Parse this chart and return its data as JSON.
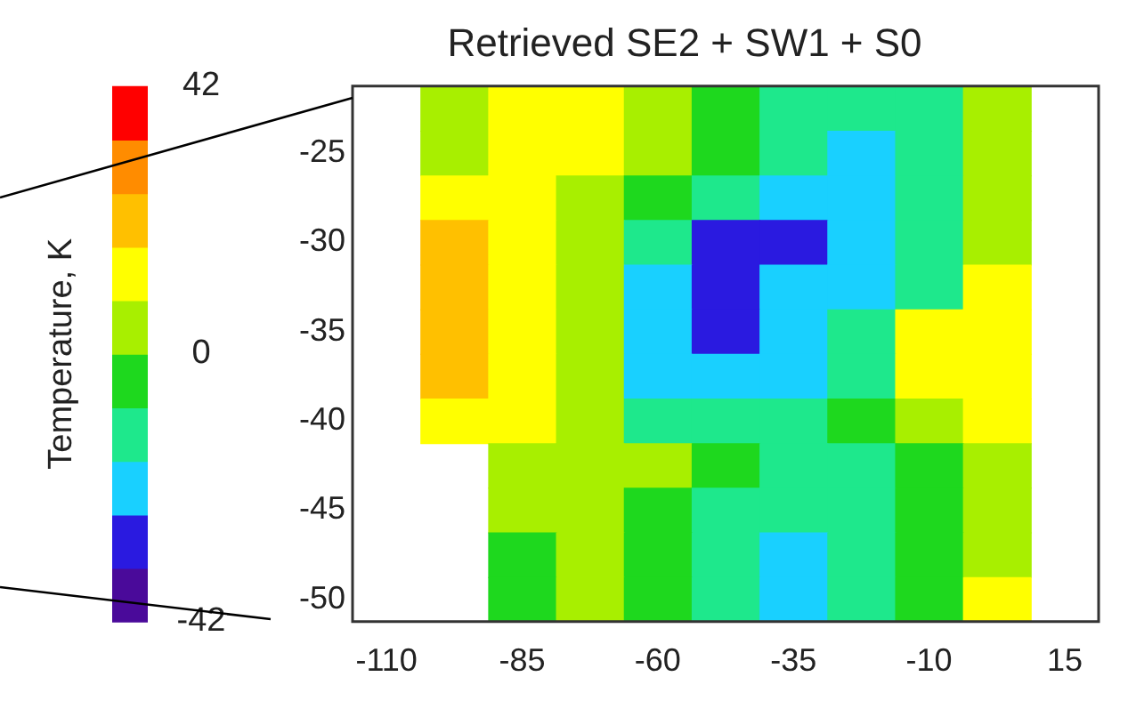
{
  "chart_data": {
    "type": "heatmap",
    "title": "Retrieved SE2 + SW1 + S0",
    "clabel": "Temperature, K",
    "categories": [
      "-110",
      null,
      "-85",
      null,
      "-60",
      null,
      "-35",
      null,
      "-10",
      null,
      "15"
    ],
    "y_categories": [
      null,
      "-25",
      null,
      "-30",
      null,
      "-35",
      null,
      "-40",
      null,
      "-45",
      null,
      "-50"
    ],
    "cells": [
      [
        null,
        4,
        12,
        12,
        4,
        -4,
        -12,
        -12,
        -12,
        4,
        null
      ],
      [
        null,
        4,
        12,
        12,
        4,
        -4,
        -12,
        -20,
        -12,
        4,
        null
      ],
      [
        null,
        12,
        12,
        4,
        -4,
        -12,
        -20,
        -20,
        -12,
        4,
        null
      ],
      [
        null,
        20,
        12,
        4,
        -12,
        -28,
        -28,
        -20,
        -12,
        4,
        null
      ],
      [
        null,
        20,
        12,
        4,
        -20,
        -28,
        -20,
        -20,
        -12,
        12,
        null
      ],
      [
        null,
        20,
        12,
        4,
        -20,
        -28,
        -20,
        -12,
        12,
        12,
        null
      ],
      [
        null,
        20,
        12,
        4,
        -20,
        -20,
        -20,
        -12,
        12,
        12,
        null
      ],
      [
        null,
        12,
        12,
        4,
        -12,
        -12,
        -12,
        -4,
        4,
        12,
        null
      ],
      [
        null,
        null,
        4,
        4,
        4,
        -4,
        -12,
        -12,
        -4,
        4,
        null
      ],
      [
        null,
        null,
        4,
        4,
        -4,
        -12,
        -12,
        -12,
        -4,
        4,
        null
      ],
      [
        null,
        null,
        -4,
        4,
        -4,
        -12,
        -20,
        -12,
        -4,
        4,
        null
      ],
      [
        null,
        null,
        -4,
        4,
        -4,
        -12,
        -20,
        -12,
        -4,
        12,
        null
      ]
    ],
    "clim": [
      -42,
      42
    ],
    "cticks": [
      42,
      0,
      -42
    ]
  }
}
